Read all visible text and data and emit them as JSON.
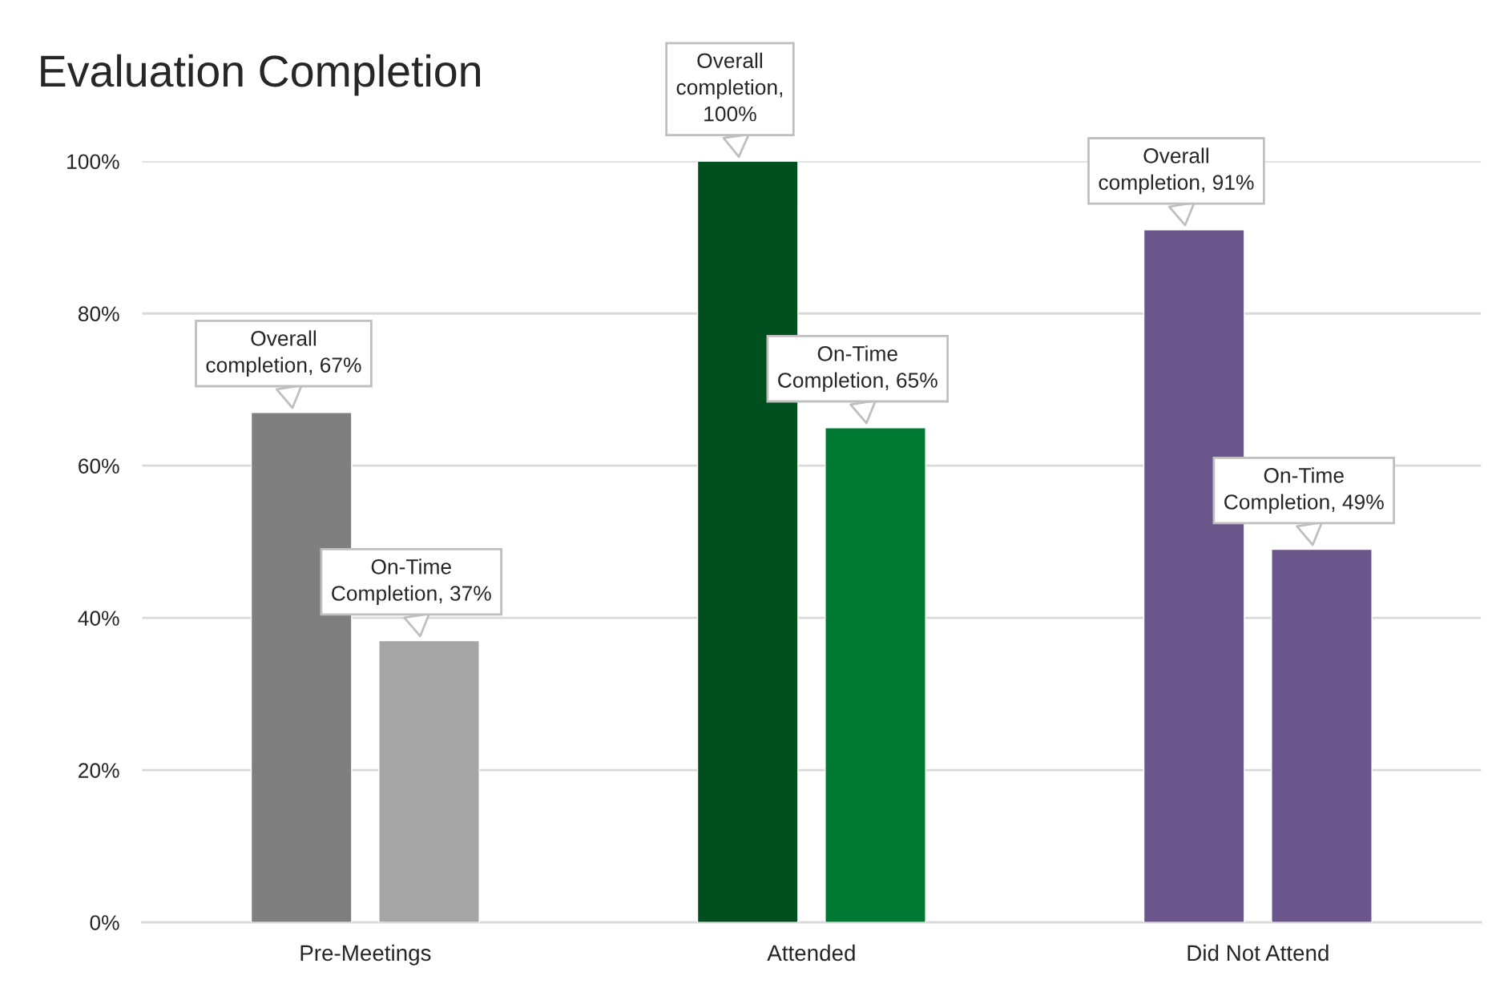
{
  "chart_data": {
    "type": "bar",
    "title": "Evaluation Completion",
    "categories": [
      "Pre-Meetings",
      "Attended",
      "Did Not Attend"
    ],
    "series": [
      {
        "colors": [
          "#7f7f7f",
          "#00501f",
          "#6a568a"
        ],
        "values": [
          67,
          100,
          91
        ],
        "value_labels": [
          "Overall\ncompletion, 67%",
          "Overall\ncompletion,\n100%",
          "Overall\ncompletion, 91%"
        ]
      },
      {
        "colors": [
          "#a5a5a5",
          "#007a33",
          "#6a568a"
        ],
        "values": [
          37,
          65,
          49
        ],
        "value_labels": [
          "On-Time\nCompletion, 37%",
          "On-Time\nCompletion, 65%",
          "On-Time\nCompletion, 49%"
        ]
      }
    ],
    "ylim": [
      0,
      100
    ],
    "yticks": [
      {
        "value": 0,
        "label": "0%"
      },
      {
        "value": 20,
        "label": "20%"
      },
      {
        "value": 40,
        "label": "40%"
      },
      {
        "value": 60,
        "label": "60%"
      },
      {
        "value": 80,
        "label": "80%"
      },
      {
        "value": 100,
        "label": "100%"
      }
    ],
    "grid": "y",
    "legend": false
  }
}
